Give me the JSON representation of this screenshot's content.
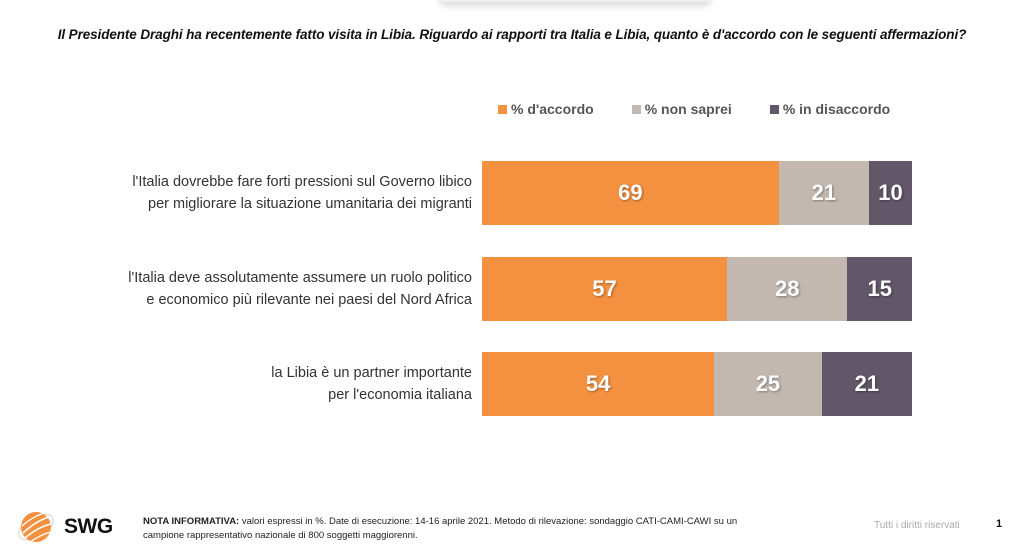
{
  "title": "Il Presidente Draghi ha recentemente fatto visita in Libia. Riguardo ai rapporti tra Italia e Libia, quanto è d'accordo con le seguenti affermazioni?",
  "chart_data": {
    "type": "bar",
    "orientation": "horizontal",
    "stacked": true,
    "title": "Il Presidente Draghi ha recentemente fatto visita in Libia. Riguardo ai rapporti tra Italia e Libia, quanto è d'accordo con le seguenti affermazioni?",
    "xlabel": "",
    "ylabel": "",
    "xlim": [
      0,
      100
    ],
    "grid": false,
    "legend_position": "top-right",
    "categories": [
      [
        "l'Italia dovrebbe fare forti pressioni sul Governo libico",
        "per migliorare la situazione umanitaria dei migranti"
      ],
      [
        "l'Italia deve assolutamente assumere un ruolo politico",
        "e economico più rilevante nei paesi del Nord Africa"
      ],
      [
        "la Libia è un partner importante",
        "per l'economia italiana"
      ]
    ],
    "series": [
      {
        "name": "% d'accordo",
        "color": "#f39140",
        "values": [
          69,
          57,
          54
        ]
      },
      {
        "name": "% non saprei",
        "color": "#c2b8b0",
        "values": [
          21,
          28,
          25
        ]
      },
      {
        "name": "% in disaccordo",
        "color": "#625669",
        "values": [
          10,
          15,
          21
        ]
      }
    ]
  },
  "footer": {
    "brand": "SWG",
    "note_label": "NOTA INFORMATIVA:",
    "note_line1": " valori espressi in %. Date di esecuzione: 14-16 aprile 2021. Metodo di rilevazione: sondaggio CATI-CAMI-CAWI su un",
    "note_line2": "campione rappresentativo nazionale di 800 soggetti maggiorenni.",
    "rights": "Tutti i diritti riservati",
    "page_number": "1"
  }
}
